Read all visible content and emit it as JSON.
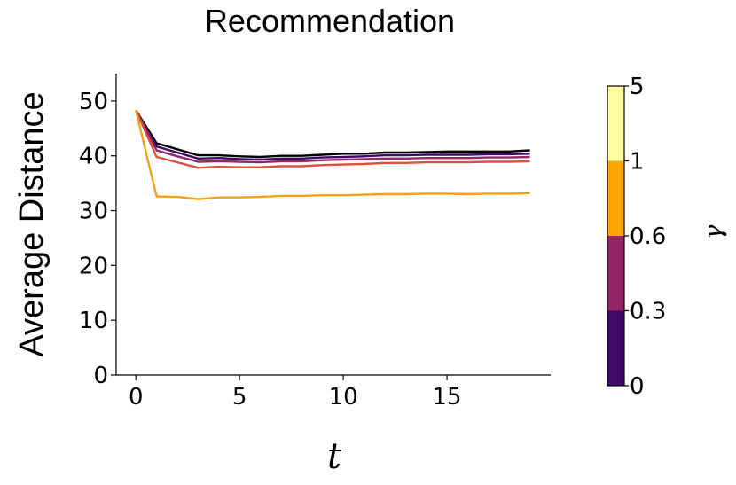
{
  "chart_data": {
    "type": "line",
    "title": "Recommendation",
    "xlabel": "t",
    "ylabel": "Average Distance",
    "xlim": [
      -0.95,
      20
    ],
    "ylim": [
      0,
      55
    ],
    "xticks": [
      0,
      5,
      10,
      15
    ],
    "yticks": [
      0,
      10,
      20,
      30,
      40,
      50
    ],
    "grid": false,
    "x": [
      0,
      1,
      2,
      3,
      4,
      5,
      6,
      7,
      8,
      9,
      10,
      11,
      12,
      13,
      14,
      15,
      16,
      17,
      18,
      19
    ],
    "series": [
      {
        "color": "#000004",
        "values": [
          48.3,
          42.3,
          41.2,
          40.1,
          40.1,
          39.9,
          39.8,
          40.0,
          40.0,
          40.2,
          40.4,
          40.4,
          40.6,
          40.6,
          40.7,
          40.8,
          40.8,
          40.8,
          40.8,
          41.0
        ]
      },
      {
        "color": "#420a68",
        "values": [
          48.3,
          41.7,
          40.6,
          39.5,
          39.6,
          39.4,
          39.3,
          39.5,
          39.5,
          39.7,
          39.8,
          39.9,
          40.1,
          40.1,
          40.2,
          40.2,
          40.2,
          40.3,
          40.3,
          40.4
        ]
      },
      {
        "color": "#932667",
        "values": [
          48.3,
          41.0,
          39.9,
          38.9,
          39.0,
          38.9,
          38.8,
          39.0,
          39.0,
          39.2,
          39.3,
          39.4,
          39.5,
          39.5,
          39.6,
          39.6,
          39.6,
          39.7,
          39.7,
          39.8
        ]
      },
      {
        "color": "#dd513a",
        "values": [
          48.3,
          39.8,
          38.8,
          37.8,
          38.0,
          37.9,
          37.9,
          38.1,
          38.1,
          38.3,
          38.4,
          38.5,
          38.7,
          38.7,
          38.8,
          38.8,
          38.8,
          38.9,
          38.9,
          39.0
        ]
      },
      {
        "color": "#f5a019",
        "values": [
          48.3,
          32.6,
          32.5,
          32.1,
          32.4,
          32.4,
          32.5,
          32.7,
          32.7,
          32.8,
          32.8,
          32.9,
          33.0,
          33.0,
          33.1,
          33.1,
          33.0,
          33.1,
          33.1,
          33.2
        ]
      }
    ],
    "colorbar": {
      "label": "γ",
      "ticks": [
        "0",
        "0.3",
        "0.6",
        "1",
        "5"
      ],
      "segments": [
        "#420a68",
        "#932667",
        "#ffa500",
        "#ffffa0"
      ]
    }
  }
}
